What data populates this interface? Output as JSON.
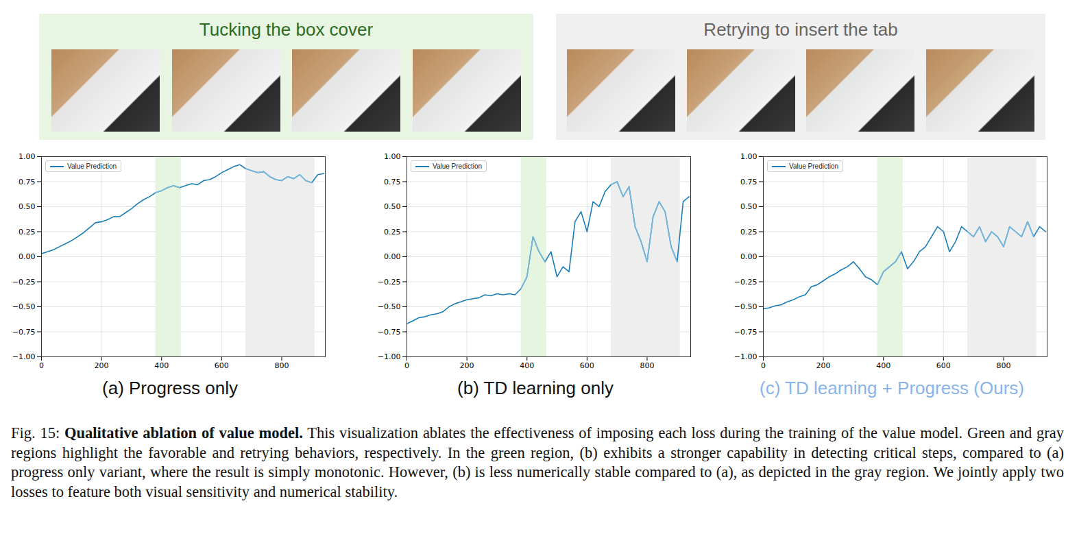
{
  "figure": {
    "panels": [
      {
        "title": "Tucking the box cover",
        "color": "#e8f5e3",
        "text_color": "#2e6b1f"
      },
      {
        "title": "Retrying to insert the tab",
        "color": "#f0f0f0",
        "text_color": "#666666"
      }
    ],
    "caption": {
      "label": "Fig. 15:",
      "title": "Qualitative ablation of value model.",
      "text": "This visualization ablates the effectiveness of imposing each loss during the training of the value model. Green and gray regions highlight the favorable and retrying behaviors, respectively. In the green region, (b) exhibits a stronger capability in detecting critical steps, compared to (a) progress only variant, where the result is simply monotonic. However, (b) is less numerically stable compared to (a), as depicted in the gray region. We jointly apply two losses to feature both visual sensitivity and numerical stability."
    }
  },
  "chart_data": [
    {
      "type": "line",
      "caption": "(a) Progress only",
      "x": [
        0,
        20,
        40,
        60,
        80,
        100,
        120,
        140,
        160,
        180,
        200,
        220,
        240,
        260,
        280,
        300,
        320,
        340,
        360,
        380,
        400,
        420,
        440,
        460,
        480,
        500,
        520,
        540,
        560,
        580,
        600,
        620,
        640,
        660,
        680,
        700,
        720,
        740,
        760,
        780,
        800,
        820,
        840,
        860,
        880,
        900,
        920,
        940
      ],
      "series": [
        {
          "name": "Value Prediction",
          "color": "#1b7db8",
          "values": [
            0.03,
            0.05,
            0.07,
            0.1,
            0.13,
            0.16,
            0.2,
            0.24,
            0.29,
            0.34,
            0.35,
            0.37,
            0.4,
            0.4,
            0.44,
            0.48,
            0.53,
            0.57,
            0.6,
            0.64,
            0.66,
            0.69,
            0.71,
            0.69,
            0.71,
            0.73,
            0.72,
            0.76,
            0.77,
            0.8,
            0.84,
            0.87,
            0.9,
            0.92,
            0.88,
            0.86,
            0.84,
            0.85,
            0.8,
            0.77,
            0.76,
            0.8,
            0.78,
            0.82,
            0.76,
            0.74,
            0.82,
            0.83
          ]
        }
      ],
      "regions": [
        {
          "x0": 380,
          "x1": 465,
          "color": "#e6f5e0",
          "line_color": "#7ab8dc"
        },
        {
          "x0": 680,
          "x1": 910,
          "color": "#eeeeee",
          "line_color": "#7ab8dc"
        }
      ],
      "xlim": [
        0,
        945
      ],
      "xticks": [
        0,
        200,
        400,
        600,
        800
      ],
      "ylim": [
        -1,
        1
      ],
      "yticks": [
        {
          "value": -1,
          "label": "−1.00"
        },
        {
          "value": -0.75,
          "label": "−0.75"
        },
        {
          "value": -0.5,
          "label": "−0.50"
        },
        {
          "value": -0.25,
          "label": "−0.25"
        },
        {
          "value": 0,
          "label": "0.00"
        },
        {
          "value": 0.25,
          "label": "0.25"
        },
        {
          "value": 0.5,
          "label": "0.50"
        },
        {
          "value": 0.75,
          "label": "0.75"
        },
        {
          "value": 1,
          "label": "1.00"
        }
      ],
      "grid": true,
      "legend": "upper left"
    },
    {
      "type": "line",
      "caption": "(b) TD learning only",
      "x": [
        0,
        20,
        40,
        60,
        80,
        100,
        120,
        140,
        160,
        180,
        200,
        220,
        240,
        260,
        280,
        300,
        320,
        340,
        360,
        380,
        400,
        420,
        440,
        460,
        480,
        500,
        520,
        540,
        560,
        580,
        600,
        620,
        640,
        660,
        680,
        700,
        720,
        740,
        760,
        780,
        800,
        820,
        840,
        860,
        880,
        900,
        920,
        940
      ],
      "series": [
        {
          "name": "Value Prediction",
          "color": "#1b7db8",
          "values": [
            -0.67,
            -0.64,
            -0.61,
            -0.6,
            -0.58,
            -0.57,
            -0.55,
            -0.5,
            -0.47,
            -0.45,
            -0.43,
            -0.42,
            -0.41,
            -0.38,
            -0.39,
            -0.37,
            -0.38,
            -0.37,
            -0.38,
            -0.32,
            -0.2,
            0.2,
            0.05,
            -0.05,
            0.05,
            -0.2,
            -0.1,
            -0.15,
            0.35,
            0.45,
            0.25,
            0.55,
            0.5,
            0.65,
            0.72,
            0.75,
            0.6,
            0.7,
            0.3,
            0.15,
            -0.05,
            0.4,
            0.55,
            0.45,
            0.1,
            -0.05,
            0.55,
            0.6
          ]
        }
      ],
      "regions": [
        {
          "x0": 380,
          "x1": 465,
          "color": "#e6f5e0",
          "line_color": "#7ab8dc"
        },
        {
          "x0": 680,
          "x1": 910,
          "color": "#eeeeee",
          "line_color": "#7ab8dc"
        }
      ],
      "xlim": [
        0,
        945
      ],
      "xticks": [
        0,
        200,
        400,
        600,
        800
      ],
      "ylim": [
        -1,
        1
      ],
      "yticks": [
        {
          "value": -1,
          "label": "−1.00"
        },
        {
          "value": -0.75,
          "label": "−0.75"
        },
        {
          "value": -0.5,
          "label": "−0.50"
        },
        {
          "value": -0.25,
          "label": "−0.25"
        },
        {
          "value": 0,
          "label": "0.00"
        },
        {
          "value": 0.25,
          "label": "0.25"
        },
        {
          "value": 0.5,
          "label": "0.50"
        },
        {
          "value": 0.75,
          "label": "0.75"
        },
        {
          "value": 1,
          "label": "1.00"
        }
      ],
      "grid": true,
      "legend": "upper left"
    },
    {
      "type": "line",
      "caption": "(c) TD learning + Progress (Ours)",
      "x": [
        0,
        20,
        40,
        60,
        80,
        100,
        120,
        140,
        160,
        180,
        200,
        220,
        240,
        260,
        280,
        300,
        320,
        340,
        360,
        380,
        400,
        420,
        440,
        460,
        480,
        500,
        520,
        540,
        560,
        580,
        600,
        620,
        640,
        660,
        680,
        700,
        720,
        740,
        760,
        780,
        800,
        820,
        840,
        860,
        880,
        900,
        920,
        940
      ],
      "series": [
        {
          "name": "Value Prediction",
          "color": "#1b7db8",
          "values": [
            -0.52,
            -0.51,
            -0.49,
            -0.48,
            -0.45,
            -0.43,
            -0.4,
            -0.38,
            -0.3,
            -0.28,
            -0.24,
            -0.2,
            -0.17,
            -0.13,
            -0.1,
            -0.05,
            -0.12,
            -0.2,
            -0.23,
            -0.28,
            -0.15,
            -0.1,
            -0.05,
            0.05,
            -0.12,
            -0.05,
            0.05,
            0.1,
            0.2,
            0.3,
            0.25,
            0.05,
            0.15,
            0.3,
            0.25,
            0.2,
            0.3,
            0.15,
            0.25,
            0.2,
            0.1,
            0.3,
            0.25,
            0.2,
            0.35,
            0.2,
            0.3,
            0.25
          ]
        }
      ],
      "regions": [
        {
          "x0": 380,
          "x1": 465,
          "color": "#e6f5e0",
          "line_color": "#7ab8dc"
        },
        {
          "x0": 680,
          "x1": 910,
          "color": "#eeeeee",
          "line_color": "#7ab8dc"
        }
      ],
      "xlim": [
        0,
        945
      ],
      "xticks": [
        0,
        200,
        400,
        600,
        800
      ],
      "ylim": [
        -1,
        1
      ],
      "yticks": [
        {
          "value": -1,
          "label": "−1.00"
        },
        {
          "value": -0.75,
          "label": "−0.75"
        },
        {
          "value": -0.5,
          "label": "−0.50"
        },
        {
          "value": -0.25,
          "label": "−0.25"
        },
        {
          "value": 0,
          "label": "0.00"
        },
        {
          "value": 0.25,
          "label": "0.25"
        },
        {
          "value": 0.5,
          "label": "0.50"
        },
        {
          "value": 0.75,
          "label": "0.75"
        },
        {
          "value": 1,
          "label": "1.00"
        }
      ],
      "grid": true,
      "legend": "upper left"
    }
  ]
}
